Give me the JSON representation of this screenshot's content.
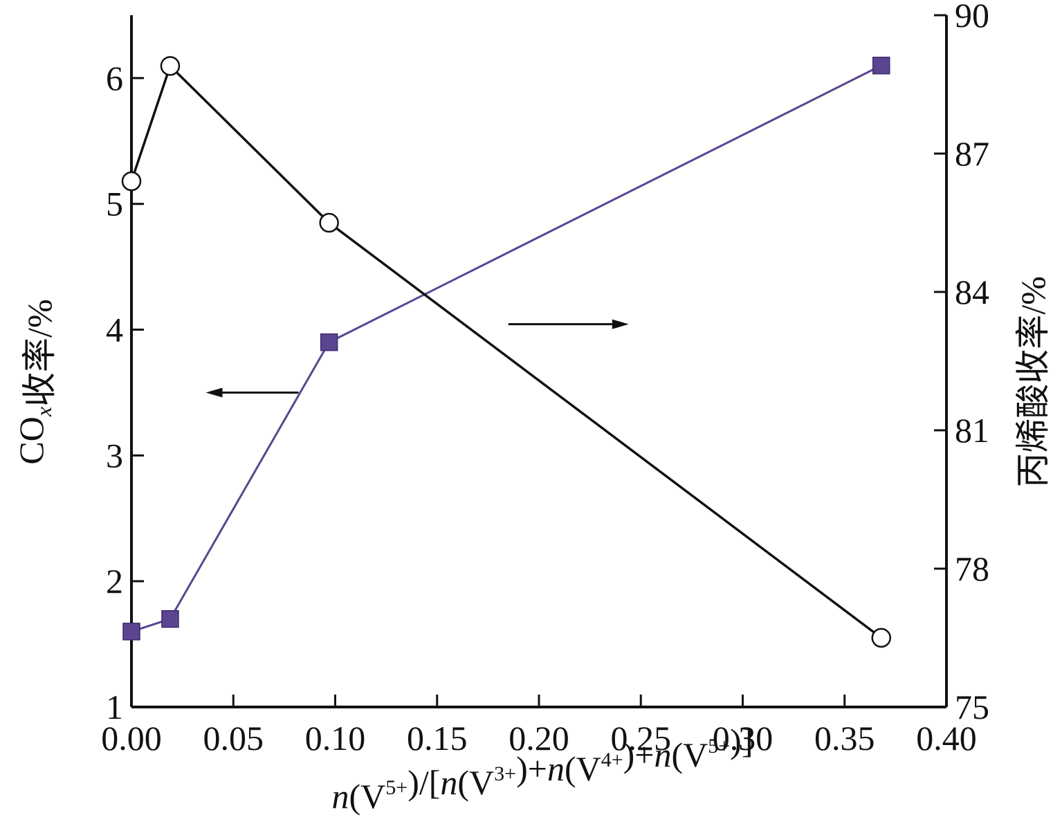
{
  "chart_data": {
    "type": "line",
    "title": "",
    "xlabel": {
      "parts": [
        {
          "t": "n",
          "style": "italic"
        },
        {
          "t": "(V"
        },
        {
          "t": "5+",
          "style": "sup"
        },
        {
          "t": ")/["
        },
        {
          "t": "n",
          "style": "italic"
        },
        {
          "t": "(V"
        },
        {
          "t": "3+",
          "style": "sup"
        },
        {
          "t": ")+"
        },
        {
          "t": "n",
          "style": "italic"
        },
        {
          "t": "(V"
        },
        {
          "t": "4+",
          "style": "sup"
        },
        {
          "t": ")+"
        },
        {
          "t": "n",
          "style": "italic"
        },
        {
          "t": "(V"
        },
        {
          "t": "5+",
          "style": "sup"
        },
        {
          "t": ")]"
        }
      ]
    },
    "ylabel_left": {
      "parts": [
        {
          "t": "CO"
        },
        {
          "t": "x",
          "style": "sub-italic"
        },
        {
          "t": "收率/%"
        }
      ]
    },
    "ylabel_right": "丙烯酸收率/%",
    "x_ticks": [
      "0.00",
      "0.05",
      "0.10",
      "0.15",
      "0.20",
      "0.25",
      "0.30",
      "0.35",
      "0.40"
    ],
    "y_left_ticks": [
      "1",
      "2",
      "3",
      "4",
      "5",
      "6"
    ],
    "y_right_ticks": [
      "75",
      "78",
      "81",
      "84",
      "87",
      "90"
    ],
    "xlim": [
      0.0,
      0.4
    ],
    "ylim_left": [
      1.0,
      6.5
    ],
    "ylim_right": [
      75.0,
      90.0
    ],
    "series": [
      {
        "axis": "left",
        "marker": "filled-square",
        "color": "#5b4590",
        "x": [
          0.0,
          0.019,
          0.097,
          0.368
        ],
        "y": [
          1.6,
          1.7,
          3.9,
          6.1
        ]
      },
      {
        "axis": "right",
        "marker": "open-circle",
        "color": "#111111",
        "x": [
          0.0,
          0.019,
          0.097,
          0.368
        ],
        "y": [
          86.4,
          88.9,
          85.5,
          76.5
        ]
      }
    ],
    "annotations": [
      {
        "type": "arrow",
        "direction": "left",
        "points_to": "left-axis"
      },
      {
        "type": "arrow",
        "direction": "right",
        "points_to": "right-axis"
      }
    ]
  }
}
